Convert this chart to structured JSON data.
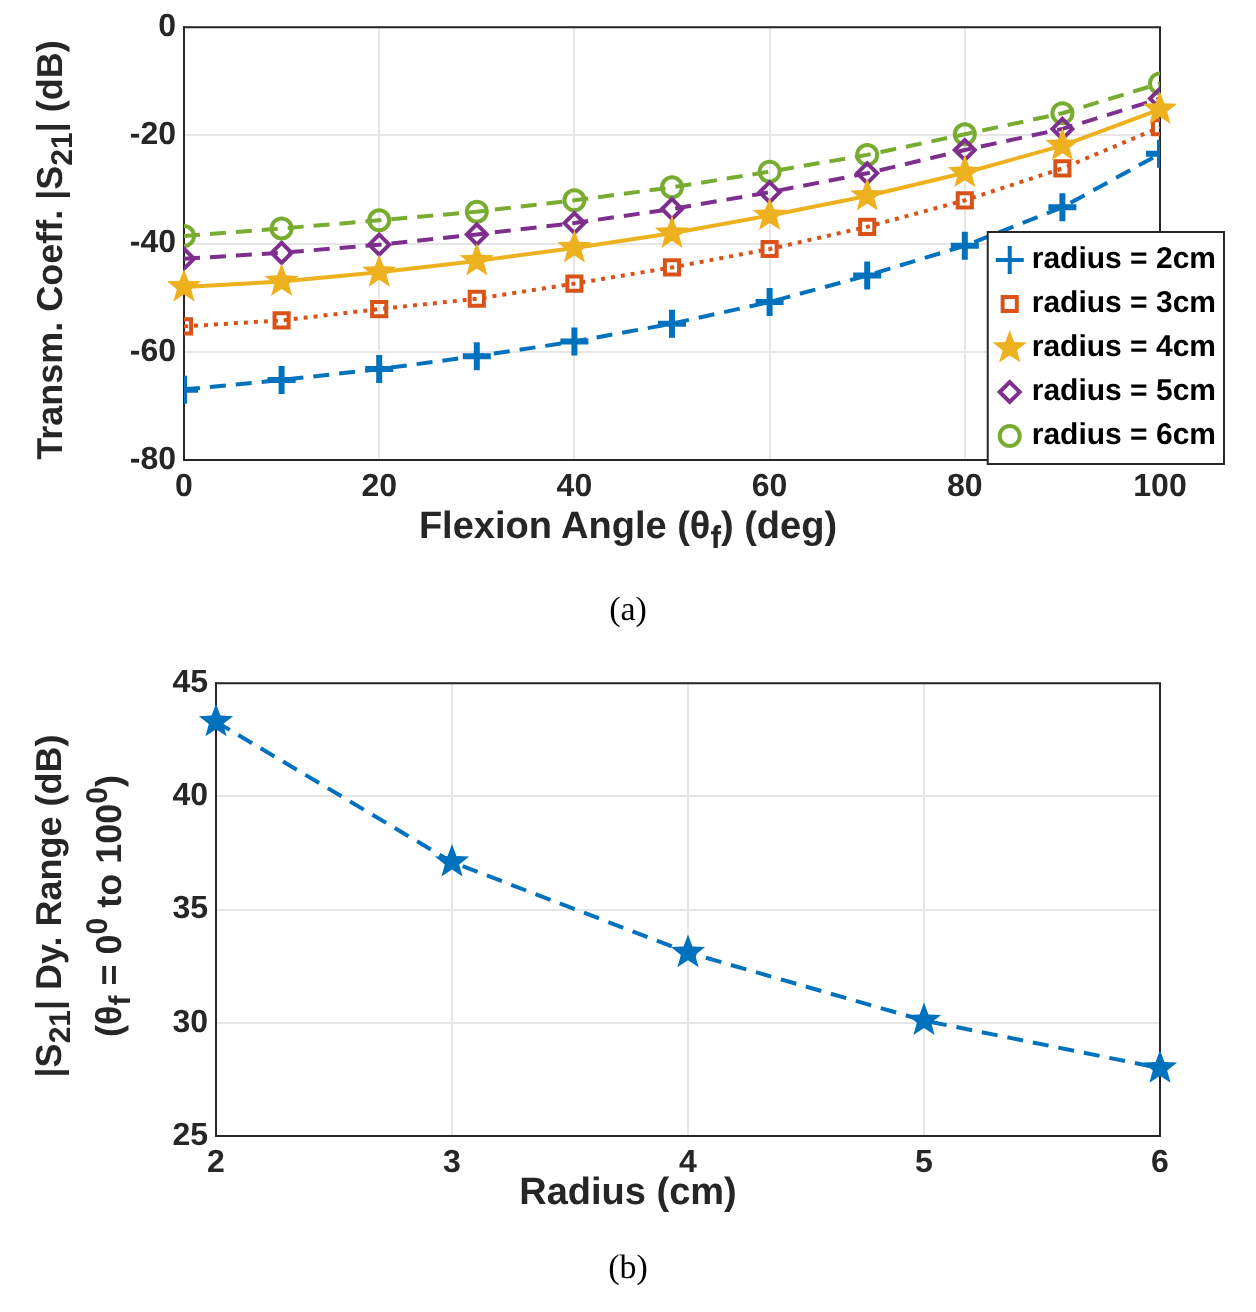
{
  "chart_data": [
    {
      "type": "line",
      "xlabel": "Flexion Angle (θ$_{f}$) (deg)",
      "ylabel": "Transm. Coeff. |S$_{21}$| (dB)",
      "annotations": [
        "(a)"
      ],
      "x": [
        0,
        10,
        20,
        30,
        40,
        50,
        60,
        70,
        80,
        90,
        100
      ],
      "xlim": [
        0,
        100
      ],
      "xticks": [
        0,
        20,
        40,
        60,
        80,
        100
      ],
      "ylim": [
        -80,
        0
      ],
      "yticks": [
        -80,
        -60,
        -40,
        -20,
        0
      ],
      "grid": true,
      "legend": "bottom right",
      "series": [
        {
          "name": "radius = 2cm",
          "color": "#0072bd",
          "marker": "cross",
          "line_style": "dashed",
          "values": [
            -67,
            -65.2,
            -63.2,
            -60.8,
            -58.1,
            -54.8,
            -50.8,
            -45.9,
            -40.4,
            -33.3,
            -23.4
          ]
        },
        {
          "name": "radius = 3cm",
          "color": "#d95319",
          "marker": "square",
          "line_style": "dotted",
          "values": [
            -55.3,
            -54.2,
            -52.1,
            -50.2,
            -47.4,
            -44.4,
            -41,
            -36.9,
            -32,
            -26.1,
            -18.5
          ]
        },
        {
          "name": "radius = 4cm",
          "color": "#edb120",
          "marker": "star",
          "line_style": "solid",
          "values": [
            -48,
            -47,
            -45.3,
            -43.2,
            -40.8,
            -38.1,
            -34.8,
            -31.2,
            -26.9,
            -21.9,
            -15.2
          ]
        },
        {
          "name": "radius = 5cm",
          "color": "#7e2f8e",
          "marker": "diamond",
          "line_style": "dashed",
          "values": [
            -42.8,
            -41.7,
            -40.2,
            -38.3,
            -36.2,
            -33.6,
            -30.5,
            -27,
            -22.7,
            -18.8,
            -13.2
          ]
        },
        {
          "name": "radius = 6cm",
          "color": "#77ac30",
          "marker": "circle",
          "line_style": "dashed",
          "values": [
            -38.6,
            -37.2,
            -35.7,
            -34.1,
            -32,
            -29.6,
            -26.7,
            -23.6,
            -19.8,
            -15.9,
            -10.4
          ]
        }
      ]
    },
    {
      "type": "line",
      "xlabel": "Radius (cm)",
      "ylabel": "|S$_{21}$| Dy. Range (dB)\n(θ$_{f}$ = 0$^{0}$ to 100$^{0}$)",
      "annotations": [
        "(b)"
      ],
      "x": [
        2,
        3,
        4,
        5,
        6
      ],
      "xlim": [
        2,
        6
      ],
      "xticks": [
        2,
        3,
        4,
        5,
        6
      ],
      "ylim": [
        25,
        45
      ],
      "yticks": [
        25,
        30,
        35,
        40,
        45
      ],
      "grid": true,
      "marker": "star",
      "line_style": "dashed",
      "series": [
        {
          "color": "#0072bd",
          "values": [
            43.3,
            37.1,
            33.1,
            30.1,
            28
          ]
        }
      ]
    }
  ]
}
